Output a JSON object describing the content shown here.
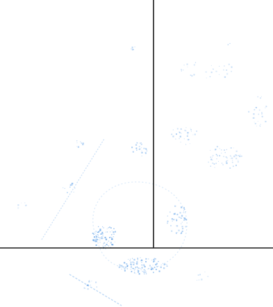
{
  "scan": {
    "ink_color": "#2f84e0",
    "rule_color": "#1a1a1a",
    "background_color": "#ffffff"
  }
}
